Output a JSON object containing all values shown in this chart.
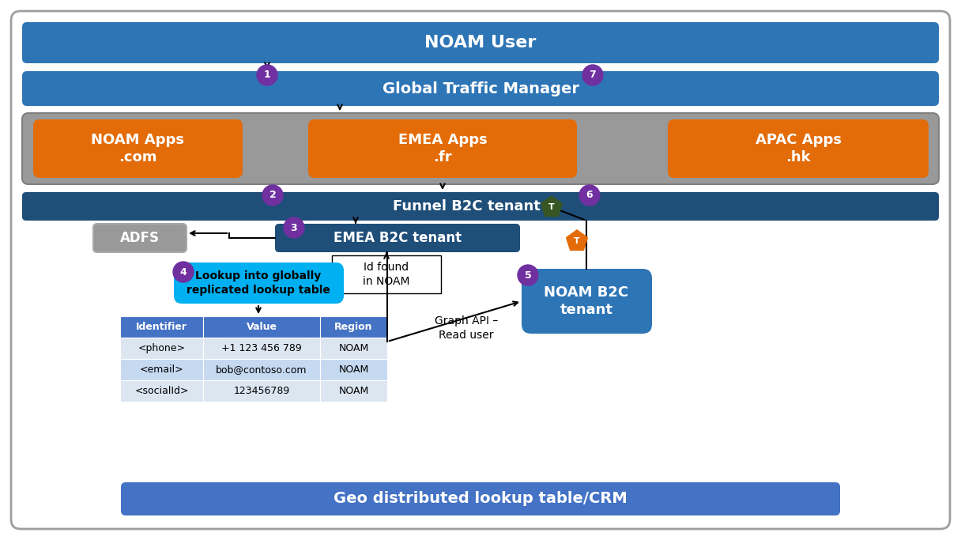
{
  "bg_color": "#ffffff",
  "border_color": "#9e9e9e",
  "blue_mid": "#2e75b6",
  "blue_dark": "#1f4e79",
  "blue_light": "#4472c4",
  "blue_pale": "#b8cce4",
  "blue_lighter": "#dce6f1",
  "orange": "#e36c09",
  "gray": "#999999",
  "gray_dark": "#808080",
  "purple": "#7030a0",
  "green_dark": "#375623",
  "cyan": "#00b0f0",
  "white": "#ffffff",
  "black": "#000000",
  "table_header_bg": "#4472c4",
  "table_row1_bg": "#dce6f1",
  "table_row2_bg": "#c5d9f1",
  "noam_user_text": "NOAM User",
  "gtm_text": "Global Traffic Manager",
  "noam_apps_text": "NOAM Apps\n.com",
  "emea_apps_text": "EMEA Apps\n.fr",
  "apac_apps_text": "APAC Apps\n.hk",
  "funnel_text": "Funnel B2C tenant",
  "adfs_text": "ADFS",
  "emea_b2c_text": "EMEA B2C tenant",
  "lookup_text": "Lookup into globally\nreplicated lookup table",
  "noam_b2c_text": "NOAM B2C\ntenant",
  "id_found_text": "Id found\nin NOAM",
  "graph_api_text": "Graph API –\nRead user",
  "geo_dist_text": "Geo distributed lookup table/CRM",
  "table_headers": [
    "Identifier",
    "Value",
    "Region"
  ],
  "table_rows": [
    [
      "<phone>",
      "+1 123 456 789",
      "NOAM"
    ],
    [
      "<email>",
      "bob@contoso.com",
      "NOAM"
    ],
    [
      "<socialId>",
      "123456789",
      "NOAM"
    ]
  ]
}
